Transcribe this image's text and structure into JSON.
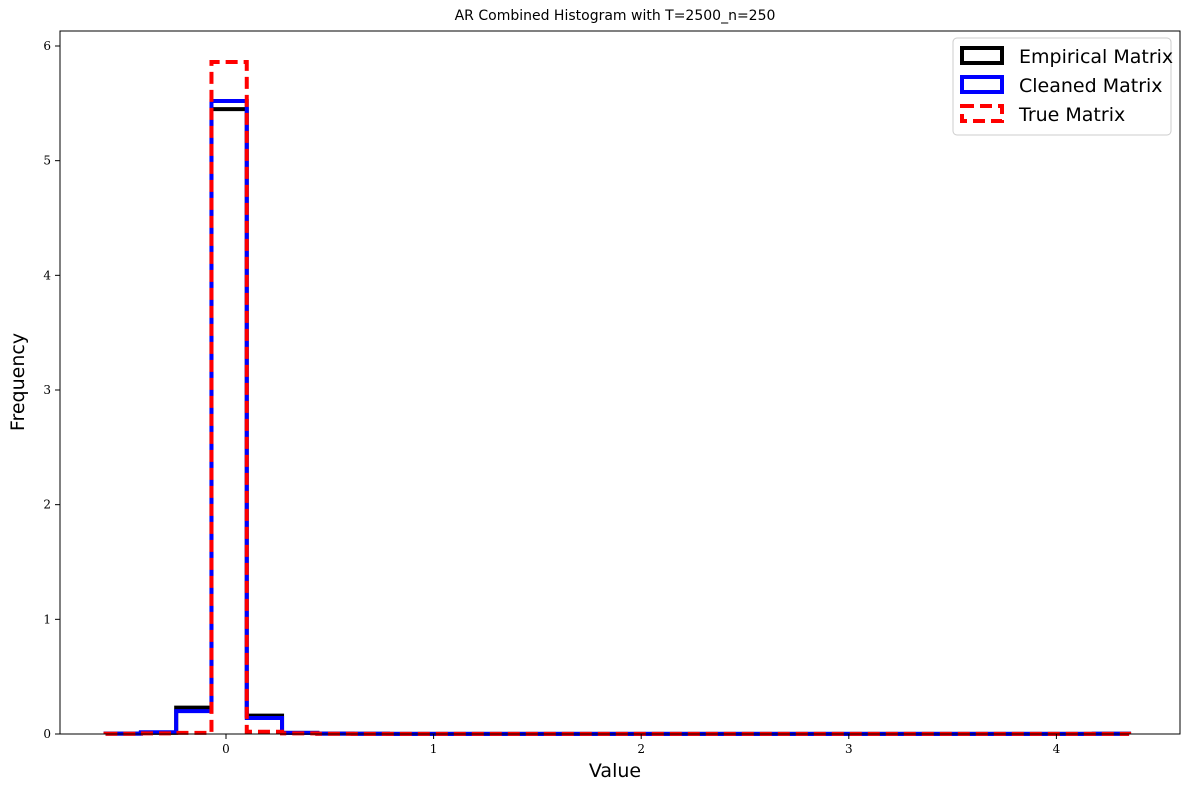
{
  "chart_data": {
    "type": "histogram",
    "title": "AR Combined Histogram with T=2500_n=250",
    "xlabel": "Value",
    "ylabel": "Frequency",
    "xlim": [
      -0.8,
      4.6
    ],
    "ylim": [
      0,
      6.15
    ],
    "xticks": [
      0,
      1,
      2,
      3,
      4
    ],
    "yticks": [
      0,
      1,
      2,
      3,
      4,
      5,
      6
    ],
    "grid": false,
    "legend_position": "top-right",
    "bin_edges": [
      -0.58,
      -0.41,
      -0.24,
      -0.07,
      0.1,
      0.27,
      0.44,
      0.61,
      0.78,
      0.95,
      1.12,
      1.29,
      1.46,
      1.63,
      1.8,
      1.97,
      2.14,
      2.31,
      2.48,
      2.65,
      2.82,
      2.99,
      3.16,
      3.33,
      3.5,
      3.67,
      3.84,
      4.01,
      4.18,
      4.35
    ],
    "series": [
      {
        "name": "Empirical Matrix",
        "color": "#000000",
        "dash": "solid",
        "values": [
          0.003,
          0.01,
          0.23,
          5.45,
          0.16,
          0.01,
          0.003,
          0.002,
          0.001,
          0.001,
          0.001,
          0.001,
          0.001,
          0.001,
          0.001,
          0.001,
          0.001,
          0.001,
          0.001,
          0.001,
          0.001,
          0.001,
          0.001,
          0.001,
          0.001,
          0.001,
          0.001,
          0.001,
          0.002
        ]
      },
      {
        "name": "Cleaned Matrix",
        "color": "#0000ff",
        "dash": "solid",
        "values": [
          0.003,
          0.015,
          0.2,
          5.52,
          0.14,
          0.01,
          0.003,
          0.002,
          0.001,
          0.001,
          0.001,
          0.001,
          0.001,
          0.001,
          0.001,
          0.001,
          0.001,
          0.001,
          0.001,
          0.001,
          0.001,
          0.001,
          0.001,
          0.001,
          0.001,
          0.001,
          0.001,
          0.001,
          0.002
        ]
      },
      {
        "name": "True Matrix",
        "color": "#ff0000",
        "dash": "dashed",
        "values": [
          0.002,
          0.005,
          0.01,
          5.86,
          0.02,
          0.005,
          0.002,
          0.001,
          0.001,
          0.001,
          0.001,
          0.001,
          0.001,
          0.001,
          0.001,
          0.001,
          0.001,
          0.001,
          0.001,
          0.001,
          0.001,
          0.001,
          0.001,
          0.001,
          0.001,
          0.001,
          0.001,
          0.001,
          0.001
        ]
      }
    ]
  }
}
